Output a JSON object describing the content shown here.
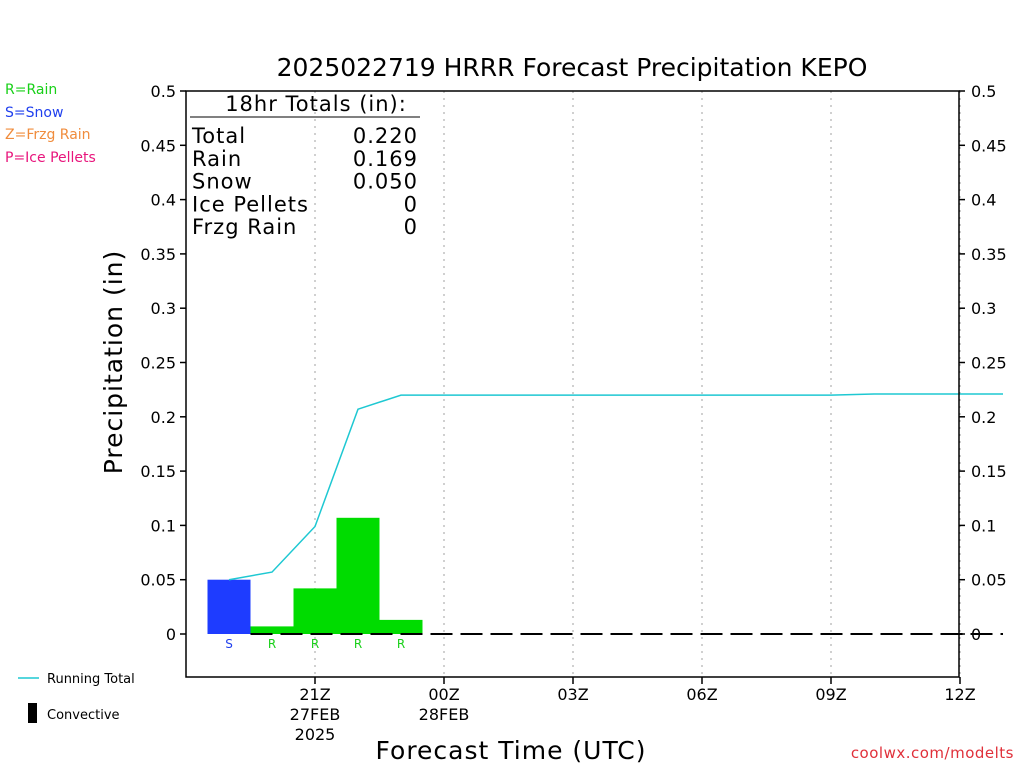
{
  "chart_data": {
    "type": "bar",
    "title": "2025022719 HRRR Forecast Precipitation KEPO",
    "xlabel": "Forecast Time (UTC)",
    "ylabel": "Precipitation (in)",
    "ylim": [
      -0.04,
      0.5
    ],
    "yticks": [
      "0.5",
      "0.45",
      "0.4",
      "0.35",
      "0.3",
      "0.25",
      "0.2",
      "0.15",
      "0.1",
      "0.05",
      "0"
    ],
    "ytick_values": [
      0.5,
      0.45,
      0.4,
      0.35,
      0.3,
      0.25,
      0.2,
      0.15,
      0.1,
      0.05,
      0
    ],
    "x_range_hours": [
      -1.25,
      17.5
    ],
    "xticks": [
      {
        "hour": 2,
        "lines": [
          "21Z",
          "27FEB",
          "2025"
        ]
      },
      {
        "hour": 5,
        "lines": [
          "00Z",
          "28FEB"
        ]
      },
      {
        "hour": 8,
        "lines": [
          "03Z"
        ]
      },
      {
        "hour": 11,
        "lines": [
          "06Z"
        ]
      },
      {
        "hour": 14,
        "lines": [
          "09Z"
        ]
      },
      {
        "hour": 17,
        "lines": [
          "12Z"
        ]
      }
    ],
    "grid": "vertical dotted",
    "bars": [
      {
        "hour": 0,
        "value": 0.05,
        "type": "S"
      },
      {
        "hour": 1,
        "value": 0.007,
        "type": "R"
      },
      {
        "hour": 2,
        "value": 0.042,
        "type": "R"
      },
      {
        "hour": 3,
        "value": 0.107,
        "type": "R"
      },
      {
        "hour": 4,
        "value": 0.013,
        "type": "R"
      }
    ],
    "running_total": {
      "name": "Running Total",
      "x": [
        0,
        1,
        2,
        3,
        4,
        5,
        6,
        7,
        8,
        9,
        10,
        11,
        12,
        13,
        14,
        15,
        16,
        17,
        18
      ],
      "y": [
        0.05,
        0.057,
        0.099,
        0.207,
        0.22,
        0.22,
        0.22,
        0.22,
        0.22,
        0.22,
        0.22,
        0.22,
        0.22,
        0.22,
        0.22,
        0.221,
        0.221,
        0.221,
        0.221
      ]
    },
    "convective": {
      "name": "Convective",
      "hours_start": 0.5,
      "hours_end": 18,
      "value": 0
    },
    "totals_box": {
      "header": "18hr Totals (in):",
      "rows": [
        {
          "label": "Total",
          "value": "0.220"
        },
        {
          "label": "Rain",
          "value": "0.169"
        },
        {
          "label": "Snow",
          "value": "0.050"
        },
        {
          "label": "Ice Pellets",
          "value": "0"
        },
        {
          "label": "Frzg Rain",
          "value": "0"
        }
      ]
    },
    "type_legend": [
      {
        "code": "R",
        "text": "R=Rain",
        "color": "#18d018"
      },
      {
        "code": "S",
        "text": "S=Snow",
        "color": "#2040ee"
      },
      {
        "code": "Z",
        "text": "Z=Frzg Rain",
        "color": "#f08c3c"
      },
      {
        "code": "P",
        "text": "P=Ice Pellets",
        "color": "#e8157c"
      }
    ],
    "colors": {
      "rain": "#00dc00",
      "snow": "#1e3cff",
      "running_total": "#1ec8d2",
      "convective": "#000000",
      "grid": "#a0a0a0"
    }
  },
  "legend": {
    "running_total_label": "Running Total",
    "convective_label": "Convective"
  },
  "credit": "coolwx.com/modelts"
}
